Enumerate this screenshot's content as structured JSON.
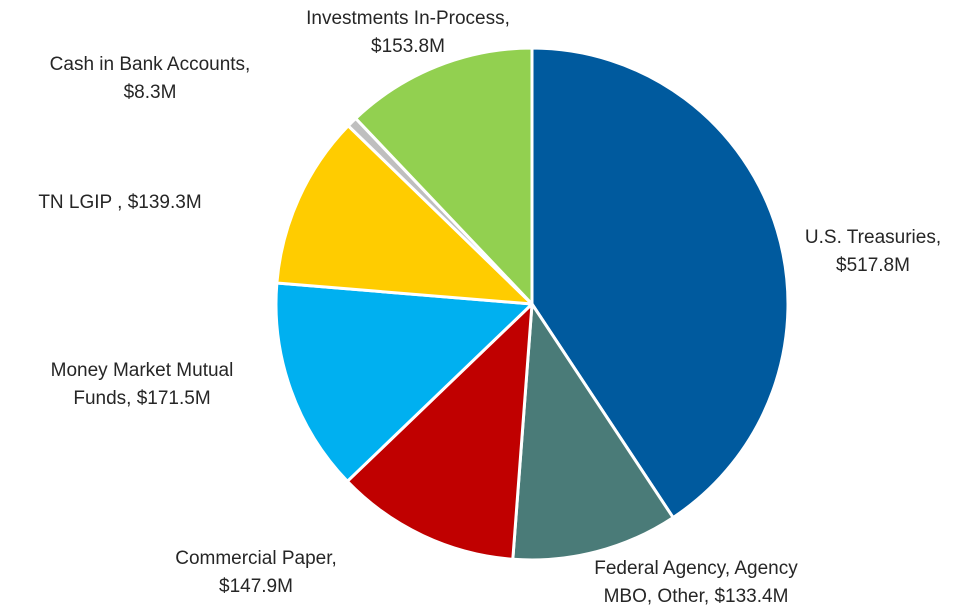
{
  "chart_data": {
    "type": "pie",
    "title": "",
    "value_unit": "$M",
    "slices": [
      {
        "name": "U.S. Treasuries",
        "value": 517.8,
        "color": "#005A9E",
        "label": [
          "U.S. Treasuries,",
          "$517.8M"
        ]
      },
      {
        "name": "Federal Agency, Agency MBO, Other",
        "value": 133.4,
        "color": "#4A7B78",
        "label": [
          "Federal Agency, Agency",
          "MBO, Other, $133.4M"
        ]
      },
      {
        "name": "Commercial Paper",
        "value": 147.9,
        "color": "#C00000",
        "label": [
          "Commercial Paper,",
          "$147.9M"
        ]
      },
      {
        "name": "Money Market Mutual Funds",
        "value": 171.5,
        "color": "#00B0F0",
        "label": [
          "Money Market Mutual",
          "Funds, $171.5M"
        ]
      },
      {
        "name": "TN LGIP",
        "value": 139.3,
        "color": "#FFCC00",
        "label": [
          "TN LGIP , $139.3M"
        ]
      },
      {
        "name": "Cash in Bank Accounts",
        "value": 8.3,
        "color": "#BFBFBF",
        "label": [
          "Cash in Bank Accounts,",
          "$8.3M"
        ]
      },
      {
        "name": "Investments In-Process",
        "value": 153.8,
        "color": "#92D050",
        "label": [
          "Investments In-Process,",
          "$153.8M"
        ]
      }
    ],
    "start_angle": "12 o'clock",
    "direction": "clockwise",
    "legend": "none",
    "data_labels": "outside"
  }
}
